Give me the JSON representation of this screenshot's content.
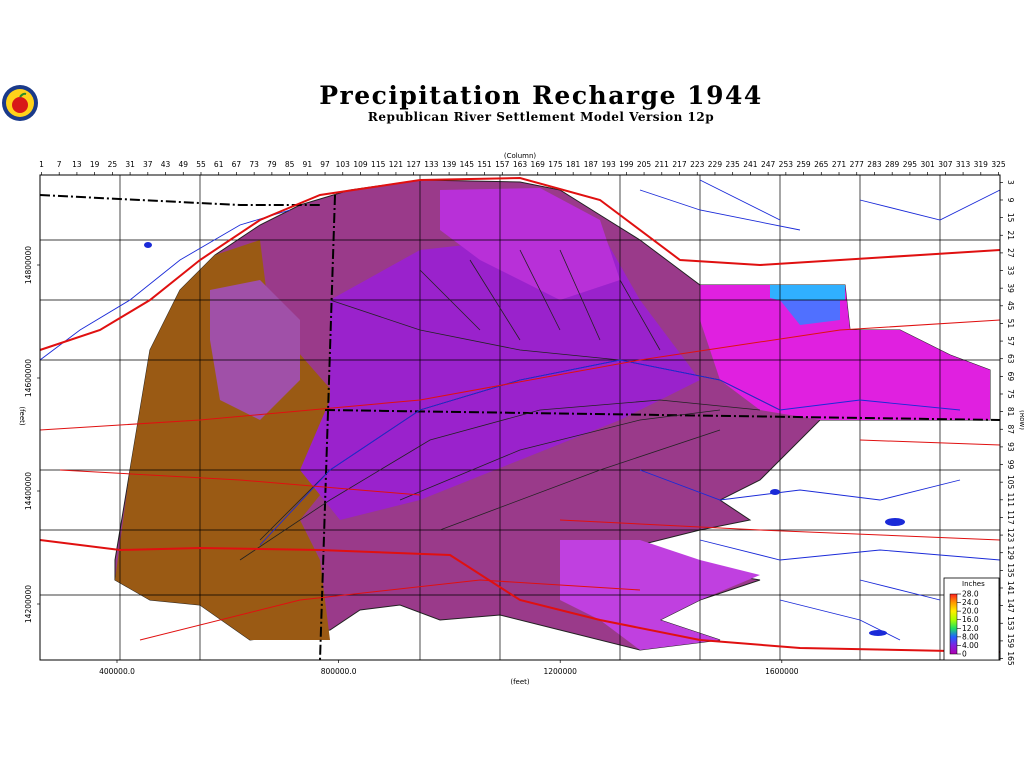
{
  "map": {
    "title": "Precipitation Recharge 1944",
    "subtitle": "Republican River Settlement Model Version 12p",
    "top_axis": {
      "label": "(Column)",
      "ticks": [
        1,
        7,
        13,
        19,
        25,
        31,
        37,
        43,
        49,
        55,
        61,
        67,
        73,
        79,
        85,
        91,
        97,
        103,
        109,
        115,
        121,
        127,
        133,
        139,
        145,
        151,
        157,
        163,
        169,
        175,
        181,
        187,
        193,
        199,
        205,
        211,
        217,
        223,
        229,
        235,
        241,
        247,
        253,
        259,
        265,
        271,
        277,
        283,
        289,
        295,
        301,
        307,
        313,
        319,
        325
      ]
    },
    "right_axis": {
      "label": "(Row)",
      "ticks": [
        3,
        9,
        15,
        21,
        27,
        33,
        39,
        45,
        51,
        57,
        63,
        69,
        75,
        81,
        87,
        93,
        99,
        105,
        111,
        117,
        123,
        129,
        135,
        141,
        147,
        153,
        159,
        165
      ]
    },
    "left_axis": {
      "label": "(feet)",
      "ticks": [
        14800000,
        14600000,
        14400000,
        14200000
      ]
    },
    "bottom_axis": {
      "label": "(feet)",
      "ticks": [
        {
          "value": 400000,
          "label": "400000.0"
        },
        {
          "value": 800000,
          "label": "800000.0"
        },
        1200000,
        1600000
      ]
    },
    "legend": {
      "title": "Inches",
      "ticks": [
        {
          "value": 28,
          "label": "28.0"
        },
        {
          "value": 24,
          "label": "24.0"
        },
        {
          "value": 20,
          "label": "20.0"
        },
        {
          "value": 16,
          "label": "16.0"
        },
        {
          "value": 12,
          "label": "12.0"
        },
        {
          "value": 8,
          "label": "8.00"
        },
        {
          "value": 4,
          "label": "4.00"
        },
        0
      ],
      "colors": [
        "#ff2020",
        "#ff9900",
        "#ffee00",
        "#aaff00",
        "#20e060",
        "#2060ff",
        "#8020e0",
        "#b000b0"
      ]
    }
  }
}
